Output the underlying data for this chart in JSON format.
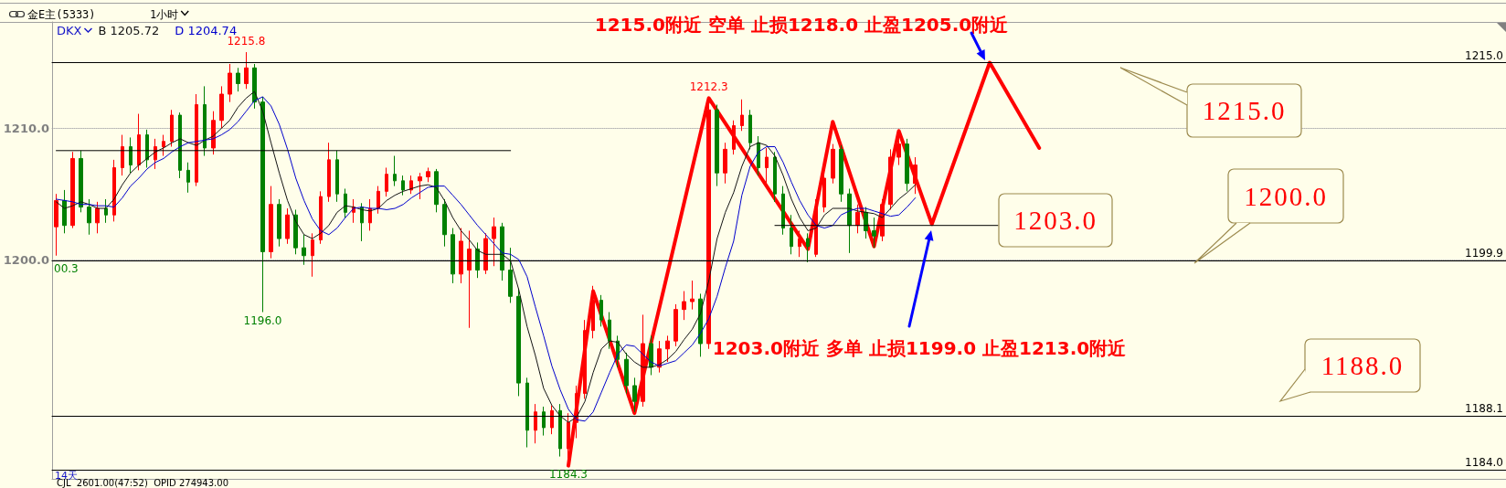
{
  "chart_data": {
    "type": "candlestick",
    "title": "金E主(5333)",
    "subtitle": "1小时",
    "legend_title": "DKX",
    "legend": "top left",
    "tick_labels": "y",
    "grid": "y",
    "marker": "none",
    "categories": [
      null,
      null,
      null,
      null,
      null,
      null,
      null,
      null,
      null,
      null,
      null,
      null,
      null,
      null,
      null,
      null,
      null,
      null,
      null,
      null,
      null,
      null,
      null,
      null,
      null,
      null,
      null,
      null,
      null,
      null,
      null,
      null,
      null,
      null,
      null,
      null,
      null,
      null,
      null,
      null,
      null,
      null,
      null,
      null,
      null,
      null,
      null,
      null,
      null,
      null,
      null,
      null,
      null,
      null,
      null,
      null,
      null,
      null,
      null,
      null,
      null,
      null,
      null,
      null,
      null,
      null,
      null,
      null,
      null,
      null,
      null,
      null,
      null,
      null,
      null,
      null,
      null,
      null,
      null,
      null,
      null,
      null,
      null,
      null,
      null,
      null,
      null,
      null,
      null,
      null,
      null,
      null,
      null,
      null,
      null,
      null,
      null,
      null,
      null,
      null,
      null,
      null,
      null,
      null,
      null,
      null,
      null,
      null,
      null,
      null,
      null,
      null,
      null,
      null,
      null,
      null,
      null,
      null,
      null,
      null,
      null,
      null,
      null,
      null,
      null,
      null,
      null,
      null,
      null,
      null,
      null,
      null,
      null,
      null,
      null,
      null,
      null,
      null,
      null,
      null,
      null,
      null,
      null,
      null,
      null,
      null,
      null,
      null,
      null,
      null,
      null,
      null,
      null,
      null,
      null,
      null,
      null,
      null,
      null,
      null,
      null,
      null,
      null,
      null,
      null,
      null,
      null,
      null,
      null,
      null,
      null,
      null,
      null,
      null,
      null,
      null
    ],
    "ohlc": [
      [
        1202.5,
        1205.0,
        1200.3,
        1204.5
      ],
      [
        1204.5,
        1205.3,
        1202.0,
        1202.6
      ],
      [
        1202.6,
        1208.2,
        1202.4,
        1207.7
      ],
      [
        1207.7,
        1208.3,
        1203.6,
        1204.0
      ],
      [
        1204.0,
        1204.6,
        1201.9,
        1202.8
      ],
      [
        1202.8,
        1204.4,
        1202.0,
        1203.9
      ],
      [
        1203.9,
        1204.6,
        1202.8,
        1203.4
      ],
      [
        1203.4,
        1207.6,
        1202.9,
        1207.0
      ],
      [
        1207.0,
        1209.5,
        1206.4,
        1208.6
      ],
      [
        1208.6,
        1209.3,
        1206.6,
        1207.2
      ],
      [
        1207.2,
        1211.1,
        1206.8,
        1209.5
      ],
      [
        1209.5,
        1209.9,
        1207.0,
        1207.6
      ],
      [
        1207.6,
        1209.2,
        1206.9,
        1208.6
      ],
      [
        1208.6,
        1209.5,
        1207.9,
        1209.0
      ],
      [
        1209.0,
        1211.4,
        1208.6,
        1211.0
      ],
      [
        1211.0,
        1211.2,
        1206.2,
        1206.8
      ],
      [
        1206.8,
        1207.4,
        1205.1,
        1205.9
      ],
      [
        1205.9,
        1212.6,
        1205.6,
        1211.8
      ],
      [
        1211.8,
        1213.2,
        1207.9,
        1208.5
      ],
      [
        1208.5,
        1211.3,
        1208.0,
        1210.6
      ],
      [
        1210.6,
        1213.2,
        1210.0,
        1212.6
      ],
      [
        1212.6,
        1214.9,
        1212.0,
        1214.2
      ],
      [
        1214.2,
        1214.6,
        1212.8,
        1213.4
      ],
      [
        1213.4,
        1215.8,
        1213.0,
        1214.6
      ],
      [
        1214.6,
        1214.9,
        1211.5,
        1212.0
      ],
      [
        1212.0,
        1212.4,
        1196.0,
        1200.6
      ],
      [
        1200.6,
        1205.6,
        1200.1,
        1204.2
      ],
      [
        1204.2,
        1204.6,
        1201.0,
        1201.6
      ],
      [
        1201.6,
        1203.9,
        1201.2,
        1203.4
      ],
      [
        1203.4,
        1203.8,
        1200.4,
        1200.9
      ],
      [
        1200.9,
        1201.9,
        1199.6,
        1200.3
      ],
      [
        1200.3,
        1202.0,
        1198.7,
        1201.5
      ],
      [
        1201.5,
        1205.2,
        1201.2,
        1204.8
      ],
      [
        1204.8,
        1208.9,
        1204.4,
        1207.6
      ],
      [
        1207.6,
        1208.3,
        1204.4,
        1205.0
      ],
      [
        1205.0,
        1205.4,
        1203.2,
        1203.6
      ],
      [
        1203.6,
        1204.6,
        1202.8,
        1204.0
      ],
      [
        1204.0,
        1204.3,
        1201.4,
        1202.8
      ],
      [
        1202.8,
        1204.6,
        1202.2,
        1203.9
      ],
      [
        1203.9,
        1205.6,
        1203.5,
        1205.2
      ],
      [
        1205.2,
        1207.0,
        1204.8,
        1206.5
      ],
      [
        1206.5,
        1207.9,
        1205.6,
        1206.0
      ],
      [
        1206.0,
        1206.4,
        1204.9,
        1205.3
      ],
      [
        1205.3,
        1206.4,
        1205.0,
        1206.0
      ],
      [
        1206.0,
        1206.6,
        1204.6,
        1206.3
      ],
      [
        1206.3,
        1207.0,
        1205.9,
        1206.7
      ],
      [
        1206.7,
        1206.9,
        1203.6,
        1204.2
      ],
      [
        1204.2,
        1204.6,
        1201.0,
        1201.9
      ],
      [
        1201.9,
        1202.4,
        1198.2,
        1198.9
      ],
      [
        1198.9,
        1202.4,
        1198.2,
        1201.4
      ],
      [
        1199.2,
        1202.2,
        1194.8,
        1200.8
      ],
      [
        1200.8,
        1201.3,
        1198.6,
        1199.2
      ],
      [
        1199.2,
        1202.0,
        1198.9,
        1201.6
      ],
      [
        1201.6,
        1203.2,
        1199.5,
        1202.5
      ],
      [
        1202.5,
        1202.8,
        1198.4,
        1199.2
      ],
      [
        1199.2,
        1200.9,
        1196.7,
        1197.2
      ],
      [
        1197.2,
        1197.8,
        1189.6,
        1190.6
      ],
      [
        1190.6,
        1191.0,
        1185.7,
        1187.0
      ],
      [
        1187.0,
        1189.0,
        1186.0,
        1188.4
      ],
      [
        1188.4,
        1188.8,
        1186.6,
        1187.2
      ],
      [
        1187.2,
        1188.9,
        1186.7,
        1188.5
      ],
      [
        1188.5,
        1189.0,
        1185.0,
        1185.6
      ],
      [
        1185.6,
        1188.3,
        1184.3,
        1187.6
      ],
      [
        1187.6,
        1190.4,
        1186.4,
        1189.8
      ],
      [
        1189.8,
        1195.4,
        1189.4,
        1194.6
      ],
      [
        1194.6,
        1198.0,
        1194.0,
        1196.9
      ],
      [
        1196.9,
        1197.3,
        1194.9,
        1195.4
      ],
      [
        1195.4,
        1196.0,
        1193.2,
        1193.8
      ],
      [
        1193.8,
        1194.2,
        1191.8,
        1192.4
      ],
      [
        1192.4,
        1192.9,
        1189.8,
        1190.4
      ],
      [
        1190.4,
        1191.0,
        1188.4,
        1189.2
      ],
      [
        1189.2,
        1195.8,
        1188.8,
        1193.6
      ],
      [
        1193.6,
        1194.2,
        1191.2,
        1191.8
      ],
      [
        1191.8,
        1193.8,
        1191.4,
        1193.2
      ],
      [
        1193.2,
        1194.2,
        1192.2,
        1193.8
      ],
      [
        1193.8,
        1196.6,
        1193.4,
        1196.2
      ],
      [
        1196.2,
        1197.6,
        1195.4,
        1196.8
      ],
      [
        1196.8,
        1198.4,
        1196.2,
        1197.0
      ],
      [
        1197.0,
        1197.4,
        1192.6,
        1193.6
      ],
      [
        1193.6,
        1212.3,
        1193.2,
        1211.4
      ],
      [
        1211.4,
        1211.8,
        1205.6,
        1206.6
      ],
      [
        1206.6,
        1208.9,
        1205.8,
        1208.4
      ],
      [
        1208.4,
        1210.6,
        1208.0,
        1210.2
      ],
      [
        1210.2,
        1212.2,
        1209.8,
        1211.0
      ],
      [
        1211.0,
        1211.4,
        1208.4,
        1208.9
      ],
      [
        1208.9,
        1209.4,
        1206.4,
        1207.0
      ],
      [
        1207.0,
        1208.5,
        1205.8,
        1207.8
      ],
      [
        1207.8,
        1208.2,
        1204.4,
        1205.0
      ],
      [
        1205.0,
        1205.6,
        1201.9,
        1202.4
      ],
      [
        1202.4,
        1203.4,
        1200.4,
        1201.0
      ],
      [
        1201.0,
        1202.2,
        1200.2,
        1201.6
      ],
      [
        1201.6,
        1202.0,
        1199.8,
        1201.0
      ],
      [
        1200.4,
        1204.6,
        1200.2,
        1204.0
      ],
      [
        1204.0,
        1206.8,
        1203.6,
        1206.2
      ],
      [
        1206.2,
        1208.8,
        1205.8,
        1208.4
      ],
      [
        1208.4,
        1208.7,
        1204.4,
        1205.0
      ],
      [
        1205.0,
        1205.4,
        1200.5,
        1202.6
      ],
      [
        1202.6,
        1204.2,
        1202.0,
        1203.6
      ],
      [
        1203.6,
        1204.0,
        1201.6,
        1202.2
      ],
      [
        1202.2,
        1203.2,
        1200.9,
        1201.8
      ],
      [
        1201.8,
        1204.6,
        1201.4,
        1204.2
      ],
      [
        1204.2,
        1208.4,
        1203.8,
        1207.8
      ],
      [
        1207.8,
        1209.9,
        1207.2,
        1208.8
      ],
      [
        1208.8,
        1209.2,
        1205.2,
        1205.8
      ],
      [
        1205.8,
        1207.8,
        1205.0,
        1207.2
      ],
      null,
      null,
      null,
      null,
      null,
      null,
      null,
      null,
      null,
      null,
      null,
      null,
      null,
      null,
      null,
      null,
      null,
      null,
      null,
      null,
      null,
      null,
      null,
      null,
      null,
      null,
      null,
      null,
      null,
      null,
      null,
      null,
      null,
      null,
      null,
      null,
      null,
      null,
      null,
      null,
      null,
      null,
      null,
      null,
      null,
      null,
      null,
      null,
      null,
      null,
      null,
      null,
      null,
      null,
      null,
      null,
      null,
      null,
      null,
      null,
      null,
      null,
      null,
      null,
      null,
      null,
      null,
      null,
      null,
      null,
      null
    ],
    "series": [
      {
        "name": "B 1205.72",
        "type": "line",
        "color": "#141414",
        "values": [
          1204.4,
          1203.9,
          1204.1,
          1204.4,
          1204.2,
          1203.9,
          1203.9,
          1204.6,
          1205.7,
          1206.6,
          1207.2,
          1207.7,
          1208.2,
          1208.5,
          1208.9,
          1209.2,
          1208.9,
          1208.7,
          1209.1,
          1209.4,
          1210.0,
          1210.6,
          1211.6,
          1212.3,
          1212.8,
          1211.3,
          1208.9,
          1206.6,
          1204.5,
          1202.9,
          1201.9,
          1201.6,
          1202.0,
          1202.6,
          1203.6,
          1204.1,
          1204.0,
          1203.8,
          1203.7,
          1203.9,
          1204.5,
          1204.9,
          1205.2,
          1205.4,
          1205.6,
          1205.7,
          1205.5,
          1204.5,
          1203.2,
          1202.2,
          1201.5,
          1200.7,
          1200.4,
          1200.4,
          1200.4,
          1199.9,
          1197.7,
          1194.9,
          1192.7,
          1190.2,
          1188.9,
          1188.1,
          1187.6,
          1188.0,
          1189.2,
          1191.4,
          1193.2,
          1193.8,
          1193.7,
          1192.8,
          1192.2,
          1191.8,
          1191.8,
          1192.0,
          1192.4,
          1193.0,
          1193.9,
          1194.7,
          1195.9,
          1198.4,
          1201.6,
          1203.6,
          1205.1,
          1207.1,
          1208.6,
          1208.9,
          1208.7,
          1207.9,
          1206.4,
          1204.6,
          1203.2,
          1202.2,
          1202.4,
          1203.4,
          1203.9,
          1203.9,
          1203.9,
          1203.7,
          1203.6,
          1203.5,
          1203.2,
          1203.9,
          1204.6,
          1205.1,
          1205.7,
          null,
          null,
          null,
          null,
          null,
          null,
          null,
          null,
          null,
          null,
          null,
          null,
          null,
          null,
          null,
          null,
          null,
          null,
          null,
          null,
          null,
          null,
          null,
          null,
          null,
          null,
          null,
          null,
          null,
          null,
          null,
          null,
          null,
          null,
          null,
          null,
          null,
          null,
          null,
          null,
          null,
          null,
          null,
          null,
          null,
          null,
          null,
          null,
          null,
          null,
          null,
          null,
          null,
          null,
          null,
          null,
          null,
          null,
          null,
          null,
          null,
          null,
          null,
          null,
          null,
          null,
          null,
          null,
          null,
          null,
          null
        ]
      },
      {
        "name": "D 1204.74",
        "type": "line",
        "color": "#0000cc",
        "values": [
          1204.6,
          1204.5,
          1204.4,
          1204.2,
          1204.2,
          1204.1,
          1204.1,
          1204.0,
          1204.7,
          1205.6,
          1206.2,
          1206.9,
          1207.4,
          1207.7,
          1208.2,
          1208.6,
          1208.9,
          1209.0,
          1209.1,
          1209.2,
          1209.5,
          1209.9,
          1210.5,
          1211.3,
          1212.1,
          1212.4,
          1211.7,
          1210.3,
          1208.4,
          1206.2,
          1204.5,
          1203.1,
          1202.2,
          1201.9,
          1202.4,
          1203.2,
          1203.9,
          1204.0,
          1203.9,
          1203.9,
          1203.8,
          1203.9,
          1204.2,
          1204.7,
          1205.1,
          1205.5,
          1205.6,
          1205.6,
          1204.9,
          1204.2,
          1203.4,
          1202.6,
          1201.9,
          1201.2,
          1200.5,
          1200.4,
          1200.0,
          1198.7,
          1196.4,
          1194.2,
          1191.9,
          1190.1,
          1188.6,
          1187.8,
          1187.7,
          1188.4,
          1189.9,
          1191.4,
          1192.8,
          1193.5,
          1193.4,
          1192.8,
          1192.2,
          1191.9,
          1192.1,
          1192.3,
          1192.9,
          1193.5,
          1194.4,
          1195.5,
          1197.2,
          1199.4,
          1201.4,
          1204.9,
          1207.1,
          1208.2,
          1208.6,
          1208.6,
          1207.4,
          1205.9,
          1204.5,
          1203.4,
          1202.6,
          1202.4,
          1202.6,
          1203.4,
          1203.7,
          1203.9,
          1203.9,
          1203.7,
          1203.5,
          1203.3,
          1203.4,
          1204.0,
          1204.7,
          null,
          null,
          null,
          null,
          null,
          null,
          null,
          null,
          null,
          null,
          null,
          null,
          null,
          null,
          null,
          null,
          null,
          null,
          null,
          null,
          null,
          null,
          null,
          null,
          null,
          null,
          null,
          null,
          null,
          null,
          null,
          null,
          null,
          null,
          null,
          null,
          null,
          null,
          null,
          null,
          null,
          null,
          null,
          null,
          null,
          null,
          null,
          null,
          null,
          null,
          null,
          null,
          null,
          null,
          null,
          null,
          null,
          null,
          null,
          null,
          null,
          null,
          null,
          null,
          null,
          null,
          null,
          null,
          null,
          null,
          null
        ]
      },
      {
        "type": "line",
        "color": "#ff0000",
        "values": [
          null,
          null,
          null,
          null,
          null,
          null,
          null,
          null,
          null,
          null,
          null,
          null,
          null,
          null,
          null,
          null,
          null,
          null,
          null,
          null,
          null,
          null,
          null,
          null,
          null,
          null,
          null,
          null,
          null,
          null,
          null,
          null,
          null,
          null,
          null,
          null,
          null,
          null,
          null,
          null,
          null,
          null,
          null,
          null,
          null,
          null,
          null,
          null,
          null,
          null,
          null,
          null,
          null,
          null,
          null,
          null,
          null,
          null,
          null,
          null,
          null,
          null,
          1184.3,
          null,
          null,
          1197.6,
          null,
          null,
          null,
          null,
          1188.3,
          null,
          null,
          null,
          null,
          null,
          null,
          null,
          null,
          1212.3,
          null,
          null,
          null,
          null,
          null,
          null,
          null,
          null,
          null,
          null,
          null,
          1200.8,
          null,
          null,
          1210.5,
          null,
          null,
          null,
          null,
          1201.0,
          null,
          null,
          1209.8,
          null,
          null,
          null,
          1202.7,
          null,
          null,
          null,
          null,
          null,
          null,
          1215.0,
          null,
          null,
          null,
          null,
          null,
          1208.5,
          null,
          null,
          null,
          null,
          null,
          null,
          null,
          null,
          null,
          null,
          null,
          null,
          null,
          null,
          null,
          null,
          null,
          null,
          null,
          null,
          null,
          null,
          null,
          null,
          null,
          null,
          null,
          null,
          null,
          null,
          null,
          null,
          null,
          null,
          null,
          null,
          null,
          null,
          null,
          null,
          null,
          null,
          null,
          null,
          null,
          null,
          null,
          null,
          null,
          null,
          null,
          null,
          null,
          null,
          null,
          null
        ]
      },
      {
        "type": "line",
        "color": "#000000",
        "values": [
          1208.3,
          null,
          null,
          null,
          null,
          null,
          null,
          null,
          null,
          null,
          null,
          null,
          null,
          null,
          null,
          null,
          null,
          null,
          null,
          null,
          null,
          null,
          null,
          null,
          null,
          null,
          null,
          null,
          null,
          null,
          null,
          null,
          null,
          null,
          null,
          null,
          null,
          null,
          null,
          null,
          null,
          null,
          null,
          null,
          null,
          null,
          null,
          null,
          null,
          null,
          null,
          null,
          null,
          null,
          null,
          1208.3,
          null,
          null,
          null,
          null,
          null,
          null,
          null,
          null,
          null,
          null,
          null,
          null,
          null,
          null,
          null,
          null,
          null,
          null,
          null,
          null,
          null,
          null,
          null,
          null,
          null,
          null,
          null,
          null,
          null,
          null,
          null,
          null,
          null,
          null,
          null,
          null,
          null,
          null,
          null,
          null,
          null,
          null,
          null,
          null,
          null,
          null,
          null,
          null,
          null,
          null,
          null,
          null,
          null,
          null,
          null,
          null,
          null,
          null,
          null,
          null,
          null,
          null,
          null,
          null,
          null,
          null,
          null,
          null,
          null,
          null,
          null,
          null,
          null,
          null,
          null,
          null,
          null,
          null,
          null,
          null,
          null,
          null,
          null,
          null,
          null,
          null,
          null,
          null,
          null,
          null,
          null,
          null,
          null,
          null,
          null,
          null,
          null,
          null,
          null,
          null,
          null,
          null,
          null,
          null,
          null,
          null,
          null,
          null,
          null,
          null,
          null,
          null,
          null,
          null,
          null,
          null,
          null,
          null,
          null,
          null
        ]
      },
      {
        "type": "line",
        "color": "#000000",
        "values": [
          null,
          null,
          null,
          null,
          null,
          null,
          null,
          null,
          null,
          null,
          null,
          null,
          null,
          null,
          null,
          null,
          null,
          null,
          null,
          null,
          null,
          null,
          null,
          null,
          null,
          null,
          null,
          null,
          null,
          null,
          null,
          null,
          null,
          null,
          null,
          null,
          null,
          null,
          null,
          null,
          null,
          null,
          null,
          null,
          null,
          null,
          null,
          null,
          null,
          null,
          null,
          null,
          null,
          null,
          null,
          null,
          null,
          null,
          null,
          null,
          null,
          null,
          null,
          null,
          null,
          null,
          null,
          null,
          null,
          null,
          null,
          null,
          null,
          null,
          null,
          null,
          null,
          null,
          null,
          null,
          null,
          null,
          null,
          null,
          null,
          null,
          null,
          1202.6,
          null,
          null,
          null,
          null,
          null,
          null,
          null,
          null,
          null,
          null,
          null,
          null,
          null,
          null,
          null,
          null,
          null,
          null,
          null,
          null,
          null,
          null,
          null,
          null,
          null,
          null,
          1202.6,
          null,
          null,
          null,
          null,
          null,
          null,
          null,
          null,
          null,
          null,
          null,
          null,
          null,
          null,
          null,
          null,
          null,
          null,
          null,
          null,
          null,
          null,
          null,
          null,
          null,
          null,
          null,
          null,
          null,
          null,
          null,
          null,
          null,
          null,
          null,
          null,
          null,
          null,
          null,
          null,
          null,
          null,
          null,
          null,
          null,
          null,
          null,
          null,
          null,
          null,
          null,
          null,
          null,
          null,
          null,
          null,
          null,
          null,
          null,
          null,
          null
        ]
      }
    ],
    "ylim": [
      1183.3,
      1218.1
    ],
    "yticks": [
      {
        "value": 1200,
        "label": "1200.0"
      },
      {
        "value": 1210,
        "label": "1210.0"
      }
    ],
    "ref_lines": [
      {
        "axis": "y",
        "value": 1215.0,
        "label": "1215.0",
        "color": "#000000"
      },
      {
        "axis": "y",
        "value": 1199.9,
        "label": "1199.9",
        "color": "#000000"
      },
      {
        "axis": "y",
        "value": 1188.1,
        "label": "1188.1",
        "color": "#000000"
      },
      {
        "axis": "y",
        "value": 1184.0,
        "label": "1184.0",
        "color": "#000000"
      }
    ],
    "annotations": [
      "1215.0附近 空单 止损1218.0 止盈1205.0附近",
      "1203.0附近 多单 止损1199.0 止盈1213.0附近",
      {
        "text": "1215.8",
        "y": 1215.8
      },
      "00.3",
      {
        "text": "1196.0",
        "y": 1196.0
      },
      {
        "text": "1184.3",
        "y": 1184.3
      },
      {
        "text": "1212.3",
        "y": 1212.3
      },
      "1215.0",
      "1203.0",
      "1200.0",
      "1188.0",
      "14天",
      "CJL  2601.00(47:52)  OPID 274943.00"
    ]
  }
}
